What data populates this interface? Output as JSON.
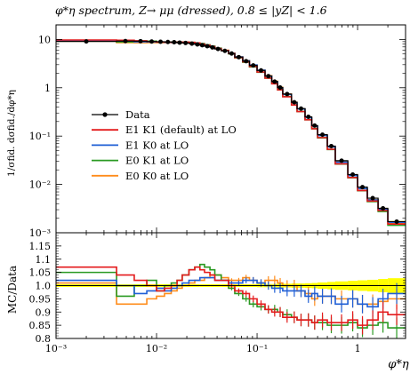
{
  "chart_data": [
    {
      "type": "line",
      "panel": "main",
      "title": "φ*η spectrum, Z→ μμ (dressed), 0.8 ≤ |yZ| < 1.6",
      "ylabel": "1/σfid. dσfid./dφ*η",
      "ylim": [
        0.001,
        20
      ],
      "ytick_labels": [
        "10",
        "1",
        "10⁻¹",
        "10⁻²",
        "10⁻³"
      ],
      "yscale": "log",
      "xscale": "log",
      "legend_position": "middle-left",
      "x_edges": [
        0.001,
        0.004,
        0.006,
        0.008,
        0.01,
        0.012,
        0.014,
        0.016,
        0.018,
        0.021,
        0.024,
        0.027,
        0.03,
        0.034,
        0.038,
        0.044,
        0.052,
        0.06,
        0.072,
        0.084,
        0.1,
        0.12,
        0.14,
        0.16,
        0.18,
        0.22,
        0.25,
        0.3,
        0.35,
        0.4,
        0.5,
        0.6,
        0.8,
        1.0,
        1.25,
        1.6,
        2.0,
        3.0
      ],
      "series": [
        {
          "name": "Data",
          "color": "#000000",
          "values": [
            9.1,
            9.25,
            9.2,
            9.05,
            8.95,
            8.85,
            8.75,
            8.6,
            8.45,
            8.2,
            7.9,
            7.6,
            7.25,
            6.85,
            6.35,
            5.8,
            5.1,
            4.3,
            3.55,
            2.9,
            2.28,
            1.74,
            1.34,
            1.01,
            0.74,
            0.5,
            0.37,
            0.25,
            0.165,
            0.107,
            0.062,
            0.031,
            0.016,
            0.0088,
            0.0052,
            0.0032,
            0.0017
          ]
        },
        {
          "name": "E1 K1 (default) at LO",
          "color": "#e41a1c",
          "ratio": [
            1.07,
            1.04,
            1.02,
            1.0,
            0.98,
            0.99,
            1.0,
            1.02,
            1.04,
            1.06,
            1.07,
            1.06,
            1.05,
            1.04,
            1.02,
            1.02,
            1.0,
            0.98,
            0.97,
            0.95,
            0.93,
            0.91,
            0.9,
            0.9,
            0.88,
            0.88,
            0.87,
            0.87,
            0.86,
            0.87,
            0.86,
            0.86,
            0.87,
            0.85,
            0.87,
            0.9,
            0.89
          ]
        },
        {
          "name": "E1 K0 at LO",
          "color": "#1f5fd6",
          "ratio": [
            1.02,
            1.0,
            0.97,
            0.98,
            0.99,
            0.98,
            0.99,
            1.0,
            1.01,
            1.02,
            1.02,
            1.03,
            1.03,
            1.03,
            1.02,
            1.02,
            1.01,
            1.01,
            1.02,
            1.02,
            1.01,
            1.0,
            0.99,
            0.99,
            0.98,
            0.98,
            0.98,
            0.96,
            0.97,
            0.96,
            0.96,
            0.93,
            0.95,
            0.93,
            0.92,
            0.95,
            0.97
          ]
        },
        {
          "name": "E0 K1 at LO",
          "color": "#2a9a22",
          "ratio": [
            1.05,
            0.96,
            1.0,
            1.02,
            0.98,
            1.0,
            1.01,
            1.02,
            1.04,
            1.06,
            1.07,
            1.08,
            1.07,
            1.06,
            1.04,
            1.02,
            0.99,
            0.97,
            0.95,
            0.93,
            0.92,
            0.91,
            0.91,
            0.9,
            0.89,
            0.88,
            0.87,
            0.87,
            0.86,
            0.86,
            0.85,
            0.85,
            0.86,
            0.84,
            0.85,
            0.86,
            0.84
          ]
        },
        {
          "name": "E0 K0 at LO",
          "color": "#ff8c1a",
          "ratio": [
            1.01,
            0.93,
            0.93,
            0.95,
            0.96,
            0.97,
            0.98,
            0.99,
            1.0,
            1.01,
            1.02,
            1.02,
            1.03,
            1.04,
            1.04,
            1.03,
            1.02,
            1.02,
            1.03,
            1.02,
            1.01,
            1.02,
            1.02,
            1.01,
            1.0,
            1.0,
            0.98,
            0.97,
            0.95,
            0.96,
            0.96,
            0.95,
            0.95,
            0.93,
            0.93,
            0.94,
            0.95
          ]
        }
      ],
      "legend": [
        "Data",
        "E1 K1 (default) at LO",
        "E1 K0 at LO",
        "E0 K1 at LO",
        "E0 K0 at LO"
      ]
    },
    {
      "type": "line",
      "panel": "ratio",
      "ylabel": "MC/Data",
      "ylim": [
        0.8,
        1.2
      ],
      "ytick_labels": [
        "1.15",
        "1.1",
        "1.05",
        "1.0",
        "0.95",
        "0.9",
        "0.85",
        "0.8"
      ],
      "xlabel": "φ*η",
      "xtick_labels": [
        "10⁻³",
        "10⁻²",
        "10⁻¹",
        "1"
      ],
      "xlim": [
        0.001,
        3.0
      ],
      "band_color": "#ffff00",
      "band_halfwidth": [
        0.005,
        0.005,
        0.005,
        0.005,
        0.005,
        0.005,
        0.005,
        0.005,
        0.005,
        0.005,
        0.005,
        0.005,
        0.005,
        0.005,
        0.005,
        0.005,
        0.005,
        0.005,
        0.005,
        0.005,
        0.006,
        0.006,
        0.006,
        0.007,
        0.007,
        0.008,
        0.008,
        0.009,
        0.01,
        0.012,
        0.014,
        0.016,
        0.018,
        0.02,
        0.022,
        0.025,
        0.028
      ]
    }
  ]
}
